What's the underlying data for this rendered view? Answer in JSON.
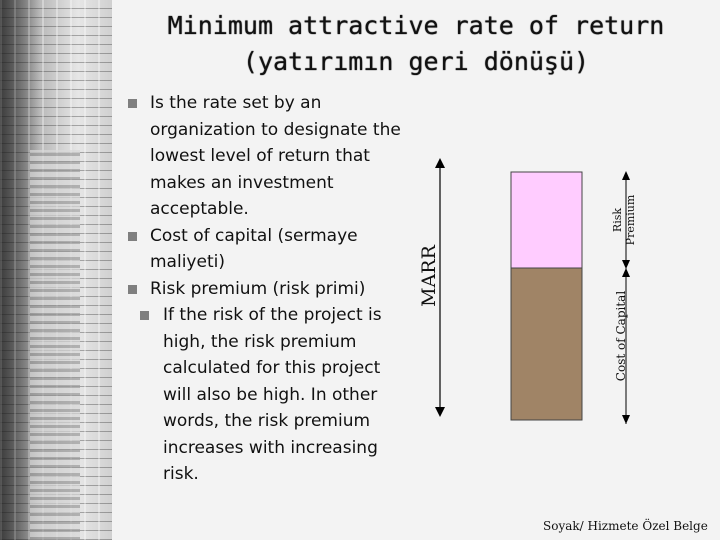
{
  "slide": {
    "title_line1": "Minimum attractive rate of return",
    "title_line2": "(yatırımın geri dönüşü)"
  },
  "bullets": [
    {
      "text": "Is the rate set by an organization to designate the lowest level of return that makes an investment acceptable."
    },
    {
      "text": "Cost of capital (sermaye maliyeti)"
    },
    {
      "text": "Risk premium (risk primi)"
    }
  ],
  "sub_bullets": [
    {
      "text": "If the risk of the project is high, the risk premium calculated for this project will also be high. In other words, the risk premium increases with increasing risk."
    }
  ],
  "diagram": {
    "mare_label": "MARR",
    "risk_premium_label_line1": "Risk",
    "risk_premium_label_line2": "Premium",
    "cost_of_capital_label": "Cost of Capital",
    "colors": {
      "risk_premium": "#ffccff",
      "cost_of_capital": "#a08466",
      "arrow": "#000000"
    }
  },
  "footer": {
    "text": "Soyak/ Hizmete Özel Belge"
  }
}
